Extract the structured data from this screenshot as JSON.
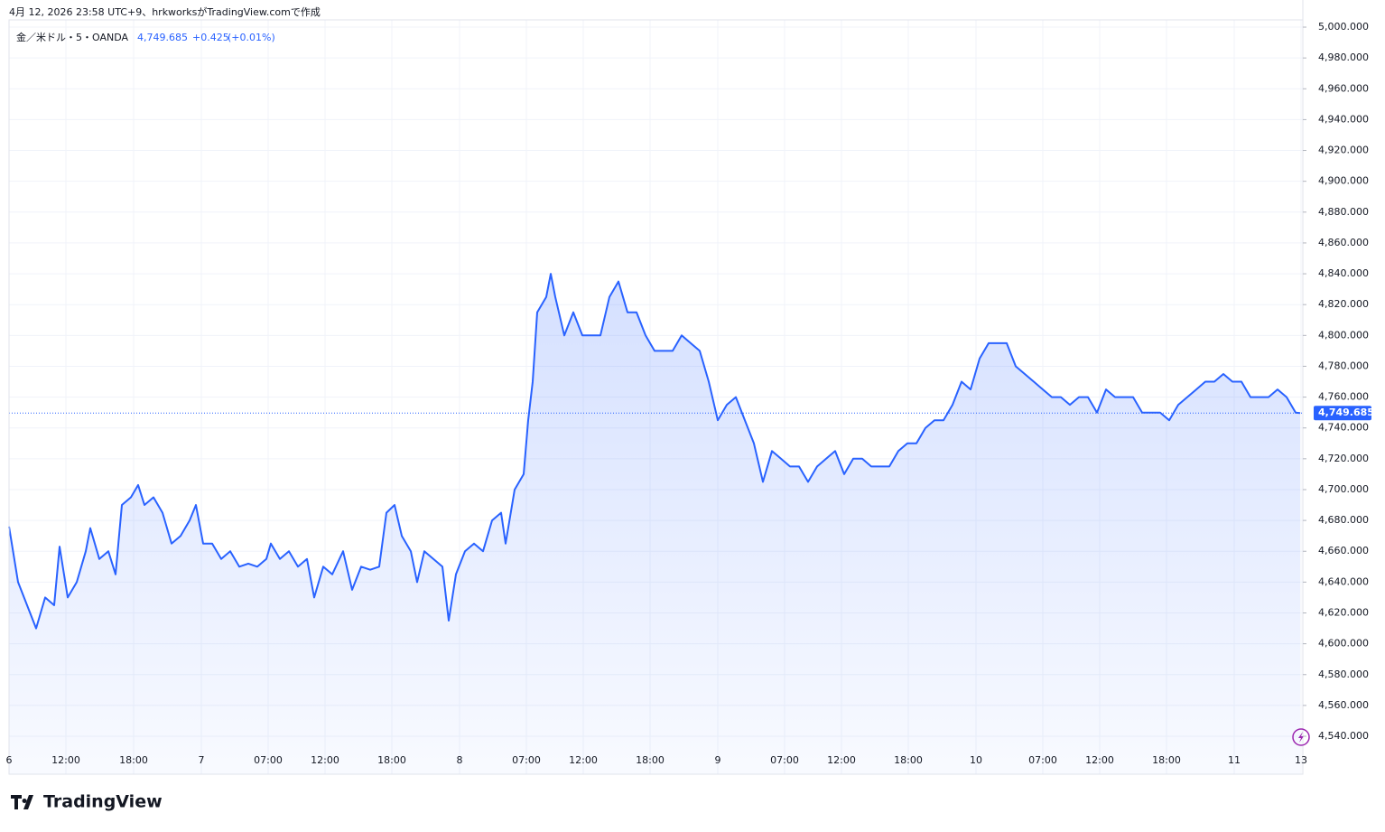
{
  "header": {
    "caption": "4月 12, 2026 23:58 UTC+9、hrkworksがTradingView.comで作成",
    "symbol": "金／米ドル・5・OANDA",
    "price": "4,749.685",
    "change": "+0.425",
    "change_percent": "(+0.01%)"
  },
  "logo": "TradingView",
  "chart_data": {
    "type": "area",
    "color": "#2962ff",
    "grid": true,
    "x": [
      0,
      1,
      2,
      3,
      4,
      5,
      5.6,
      6.5,
      7.5,
      8.5,
      9,
      10,
      11,
      11.8,
      12.5,
      13.5,
      14.3,
      15,
      16,
      17,
      18,
      19,
      20,
      20.7,
      21.5,
      22.5,
      23.5,
      24.5,
      25.5,
      26.5,
      27.5,
      28.5,
      29,
      30,
      31,
      32,
      33,
      33.8,
      34.8,
      35.8,
      37,
      38,
      39,
      40,
      41,
      41.8,
      42.7,
      43.5,
      44.5,
      45.2,
      46,
      47,
      48,
      48.7,
      49.5,
      50.5,
      51.5,
      52.5,
      53.5,
      54.5,
      55,
      56,
      57,
      57.5,
      58,
      58.5,
      59.5,
      60,
      60.5,
      61.5,
      62.5,
      63.5,
      64.5,
      65.5,
      66.5,
      67.5,
      68.5,
      69.5,
      70.5,
      71.5,
      72.5,
      73.5,
      74.5,
      75.5,
      76.5,
      77.5,
      78.5,
      79.5,
      80.5,
      81.5,
      82.5,
      83.5,
      84.5,
      85.5,
      86.5,
      87.5,
      88.5,
      89.5,
      90.5,
      91.5,
      92.5,
      93.5,
      94.5,
      95.5,
      96.5,
      97.5,
      98.5,
      99.5,
      100.5,
      101.5,
      102.5,
      103.5,
      104.5,
      105.5,
      106.5,
      107.5,
      108.5,
      109.5,
      110.5,
      111.5,
      112.5,
      113.5,
      114.5,
      115.5,
      116.5,
      117.5,
      118.5,
      119.5,
      120.5,
      121.5,
      122.5,
      123.5,
      124.5,
      125.5,
      126.5,
      127.5,
      128.5,
      129.5,
      130.5,
      131.5,
      132.5,
      133.5,
      134.5,
      135.5,
      136.5,
      137.5,
      138.5,
      139.5,
      140.5,
      141.5,
      142.5,
      143
    ],
    "values": [
      4676,
      4640,
      4625,
      4610,
      4630,
      4625,
      4663,
      4630,
      4640,
      4660,
      4675,
      4655,
      4660,
      4645,
      4690,
      4695,
      4703,
      4690,
      4695,
      4685,
      4665,
      4670,
      4680,
      4690,
      4665,
      4665,
      4655,
      4660,
      4650,
      4652,
      4650,
      4655,
      4665,
      4655,
      4660,
      4650,
      4655,
      4630,
      4650,
      4645,
      4660,
      4635,
      4650,
      4648,
      4650,
      4685,
      4690,
      4670,
      4660,
      4640,
      4660,
      4655,
      4650,
      4615,
      4645,
      4660,
      4665,
      4660,
      4680,
      4685,
      4665,
      4700,
      4710,
      4745,
      4770,
      4815,
      4825,
      4840,
      4825,
      4800,
      4815,
      4800,
      4800,
      4800,
      4825,
      4835,
      4815,
      4815,
      4800,
      4790,
      4790,
      4790,
      4800,
      4795,
      4790,
      4770,
      4745,
      4755,
      4760,
      4745,
      4730,
      4705,
      4725,
      4720,
      4715,
      4715,
      4705,
      4715,
      4720,
      4725,
      4710,
      4720,
      4720,
      4715,
      4715,
      4715,
      4725,
      4730,
      4730,
      4740,
      4745,
      4745,
      4755,
      4770,
      4765,
      4785,
      4795,
      4795,
      4795,
      4780,
      4775,
      4770,
      4765,
      4760,
      4760,
      4755,
      4760,
      4760,
      4750,
      4765,
      4760,
      4760,
      4760,
      4750,
      4750,
      4750,
      4745,
      4755,
      4760,
      4765,
      4770,
      4770,
      4775,
      4770,
      4770,
      4760,
      4760,
      4760,
      4765,
      4760,
      4750,
      4749.685
    ],
    "xlim": [
      0,
      143.3
    ],
    "xticks": [
      {
        "value": 0,
        "label": "6"
      },
      {
        "value": 6.3,
        "label": "12:00"
      },
      {
        "value": 13.8,
        "label": "18:00"
      },
      {
        "value": 21.3,
        "label": "7"
      },
      {
        "value": 28.7,
        "label": "07:00"
      },
      {
        "value": 35,
        "label": "12:00"
      },
      {
        "value": 42.4,
        "label": "18:00"
      },
      {
        "value": 49.9,
        "label": "8"
      },
      {
        "value": 57.3,
        "label": "07:00"
      },
      {
        "value": 63.6,
        "label": "12:00"
      },
      {
        "value": 71,
        "label": "18:00"
      },
      {
        "value": 78.5,
        "label": "9"
      },
      {
        "value": 85.9,
        "label": "07:00"
      },
      {
        "value": 92.2,
        "label": "12:00"
      },
      {
        "value": 99.6,
        "label": "18:00"
      },
      {
        "value": 107.1,
        "label": "10"
      },
      {
        "value": 114.5,
        "label": "07:00"
      },
      {
        "value": 120.8,
        "label": "12:00"
      },
      {
        "value": 128.2,
        "label": "18:00"
      },
      {
        "value": 135.7,
        "label": "11"
      },
      {
        "value": 143.1,
        "label": "13"
      }
    ],
    "ylim": [
      4515.4,
      5004.7
    ],
    "yticks": [
      {
        "value": 4540,
        "label": "4,540.000"
      },
      {
        "value": 4560,
        "label": "4,560.000"
      },
      {
        "value": 4580,
        "label": "4,580.000"
      },
      {
        "value": 4600,
        "label": "4,600.000"
      },
      {
        "value": 4620,
        "label": "4,620.000"
      },
      {
        "value": 4640,
        "label": "4,640.000"
      },
      {
        "value": 4660,
        "label": "4,660.000"
      },
      {
        "value": 4680,
        "label": "4,680.000"
      },
      {
        "value": 4700,
        "label": "4,700.000"
      },
      {
        "value": 4720,
        "label": "4,720.000"
      },
      {
        "value": 4740,
        "label": "4,740.000"
      },
      {
        "value": 4760,
        "label": "4,760.000"
      },
      {
        "value": 4780,
        "label": "4,780.000"
      },
      {
        "value": 4800,
        "label": "4,800.000"
      },
      {
        "value": 4820,
        "label": "4,820.000"
      },
      {
        "value": 4840,
        "label": "4,840.000"
      },
      {
        "value": 4860,
        "label": "4,860.000"
      },
      {
        "value": 4880,
        "label": "4,880.000"
      },
      {
        "value": 4900,
        "label": "4,900.000"
      },
      {
        "value": 4920,
        "label": "4,920.000"
      },
      {
        "value": 4940,
        "label": "4,940.000"
      },
      {
        "value": 4960,
        "label": "4,960.000"
      },
      {
        "value": 4980,
        "label": "4,980.000"
      },
      {
        "value": 5000,
        "label": "5,000.000"
      }
    ],
    "last_price": {
      "value": 4749.685,
      "label": "4,749.685"
    }
  }
}
